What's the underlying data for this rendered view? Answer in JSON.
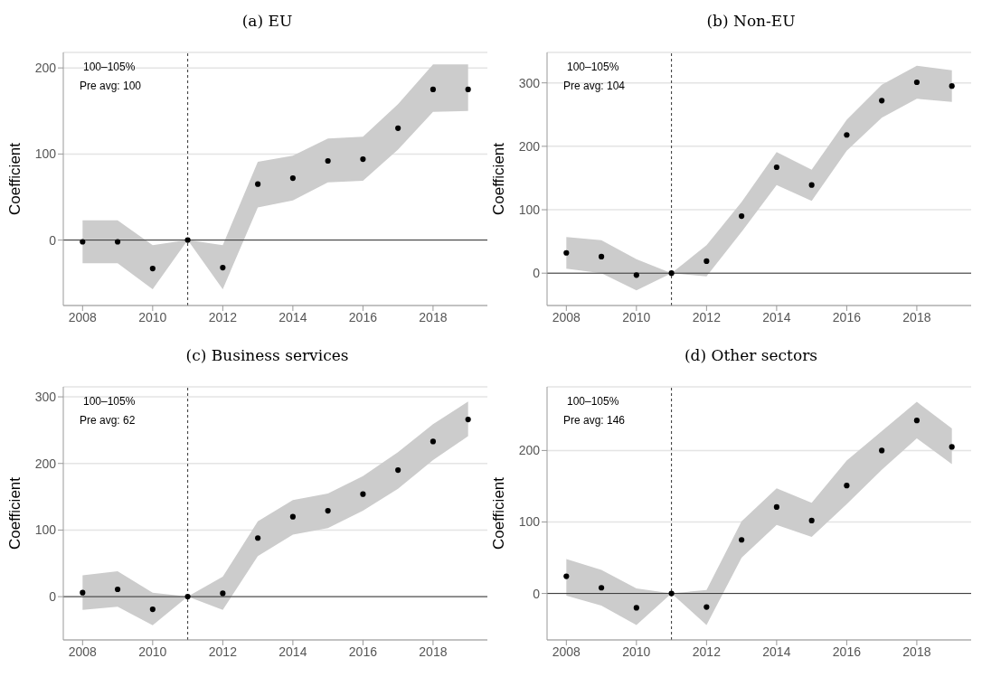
{
  "chart_data": [
    {
      "type": "scatter",
      "title": "(a) EU",
      "ylabel": "Coefficient",
      "annotations": [
        "100–105%",
        "Pre avg: 100"
      ],
      "x": [
        2008,
        2009,
        2010,
        2011,
        2012,
        2013,
        2014,
        2015,
        2016,
        2017,
        2018,
        2019
      ],
      "xlim": [
        2007.45,
        2019.55
      ],
      "xticks": [
        2008,
        2010,
        2012,
        2014,
        2016,
        2018
      ],
      "ylim": [
        -76,
        218
      ],
      "yticks": [
        0,
        100,
        200
      ],
      "grid": "y",
      "marker": "circle",
      "series": [
        {
          "color": "#000000",
          "values": [
            -2,
            -2,
            -33,
            0,
            -32,
            65,
            72,
            92,
            94,
            130,
            175,
            175
          ],
          "lower": [
            -27,
            -27,
            -57,
            0,
            -57,
            38,
            46,
            67,
            69,
            105,
            149,
            150
          ],
          "upper": [
            23,
            23,
            -6,
            0,
            -6,
            91,
            98,
            118,
            120,
            158,
            204,
            204
          ]
        }
      ],
      "ref_lines": [
        {
          "axis": "x",
          "value": 2011,
          "line_style": "dashed",
          "color": "#333333"
        },
        {
          "axis": "y",
          "value": 0,
          "line_style": "solid",
          "color": "#333333"
        }
      ]
    },
    {
      "type": "scatter",
      "title": "(b) Non-EU",
      "ylabel": "Coefficient",
      "annotations": [
        "100–105%",
        "Pre avg: 104"
      ],
      "x": [
        2008,
        2009,
        2010,
        2011,
        2012,
        2013,
        2014,
        2015,
        2016,
        2017,
        2018,
        2019
      ],
      "xlim": [
        2007.45,
        2019.55
      ],
      "xticks": [
        2008,
        2010,
        2012,
        2014,
        2016,
        2018
      ],
      "ylim": [
        -51,
        348
      ],
      "yticks": [
        0,
        100,
        200,
        300
      ],
      "grid": "y",
      "marker": "circle",
      "series": [
        {
          "color": "#000000",
          "values": [
            32,
            26,
            -3,
            0,
            19,
            90,
            167,
            139,
            218,
            272,
            301,
            295
          ],
          "lower": [
            7,
            0,
            -27,
            0,
            -5,
            65,
            139,
            114,
            193,
            245,
            275,
            270
          ],
          "upper": [
            57,
            52,
            22,
            0,
            44,
            112,
            191,
            163,
            242,
            297,
            327,
            320
          ]
        }
      ],
      "ref_lines": [
        {
          "axis": "x",
          "value": 2011,
          "line_style": "dashed",
          "color": "#333333"
        },
        {
          "axis": "y",
          "value": 0,
          "line_style": "solid",
          "color": "#333333"
        }
      ]
    },
    {
      "type": "scatter",
      "title": "(c) Business services",
      "ylabel": "Coefficient",
      "annotations": [
        "100–105%",
        "Pre avg: 62"
      ],
      "x": [
        2008,
        2009,
        2010,
        2011,
        2012,
        2013,
        2014,
        2015,
        2016,
        2017,
        2018,
        2019
      ],
      "xlim": [
        2007.45,
        2019.55
      ],
      "xticks": [
        2008,
        2010,
        2012,
        2014,
        2016,
        2018
      ],
      "ylim": [
        -65,
        315
      ],
      "yticks": [
        0,
        100,
        200,
        300
      ],
      "grid": "y",
      "marker": "circle",
      "series": [
        {
          "color": "#000000",
          "values": [
            6,
            11,
            -19,
            0,
            5,
            88,
            120,
            129,
            154,
            190,
            233,
            266
          ],
          "lower": [
            -20,
            -15,
            -43,
            0,
            -20,
            61,
            93,
            103,
            129,
            162,
            205,
            241
          ],
          "upper": [
            32,
            38,
            6,
            0,
            30,
            113,
            145,
            155,
            181,
            217,
            259,
            293
          ]
        }
      ],
      "ref_lines": [
        {
          "axis": "x",
          "value": 2011,
          "line_style": "dashed",
          "color": "#333333"
        },
        {
          "axis": "y",
          "value": 0,
          "line_style": "solid",
          "color": "#333333"
        }
      ]
    },
    {
      "type": "scatter",
      "title": "(d) Other sectors",
      "ylabel": "Coefficient",
      "annotations": [
        "100–105%",
        "Pre avg: 146"
      ],
      "x": [
        2008,
        2009,
        2010,
        2011,
        2012,
        2013,
        2014,
        2015,
        2016,
        2017,
        2018,
        2019
      ],
      "xlim": [
        2007.45,
        2019.55
      ],
      "xticks": [
        2008,
        2010,
        2012,
        2014,
        2016,
        2018
      ],
      "ylim": [
        -65,
        289
      ],
      "yticks": [
        0,
        100,
        200
      ],
      "grid": "y",
      "marker": "circle",
      "series": [
        {
          "color": "#000000",
          "values": [
            24,
            8,
            -20,
            0,
            -19,
            75,
            121,
            102,
            151,
            200,
            242,
            205
          ],
          "lower": [
            -3,
            -17,
            -44,
            0,
            -44,
            50,
            96,
            79,
            125,
            173,
            217,
            181
          ],
          "upper": [
            48,
            33,
            7,
            0,
            5,
            101,
            147,
            127,
            186,
            227,
            268,
            231
          ]
        }
      ],
      "ref_lines": [
        {
          "axis": "x",
          "value": 2011,
          "line_style": "dashed",
          "color": "#333333"
        },
        {
          "axis": "y",
          "value": 0,
          "line_style": "solid",
          "color": "#333333"
        }
      ]
    }
  ]
}
